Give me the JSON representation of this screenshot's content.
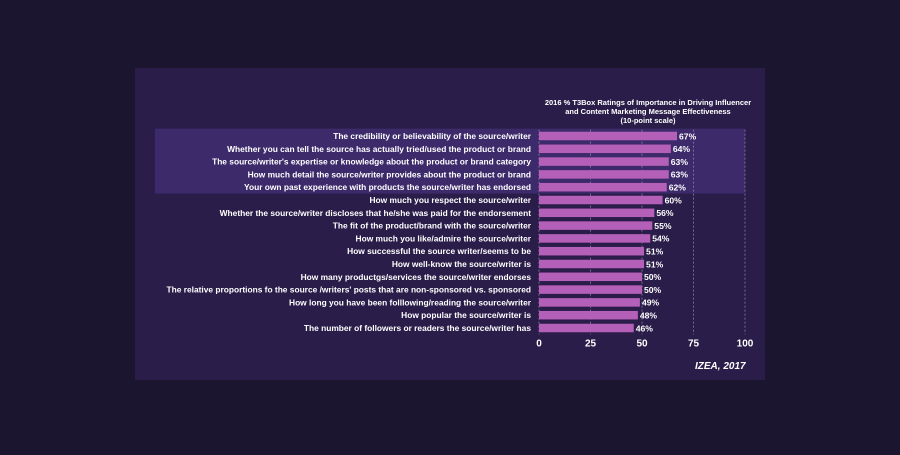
{
  "chart_data": {
    "type": "bar",
    "orientation": "horizontal",
    "title_lines": [
      "2016 %  T3Box Ratings of Importance in Driving Influencer",
      "and Content Marketing Message Effectiveness",
      "(10-point scale)"
    ],
    "categories": [
      "The credibility or believability of the source/writer",
      "Whether you can tell the source has actually tried/used the product or brand",
      "The source/writer's expertise or knowledge about the product or brand category",
      "How much detail the source/writer provides about the product or brand",
      "Your own past experience with products the source/writer has endorsed",
      "How much you respect the source/writer",
      "Whether the source/writer discloses that he/she was paid for the endorsement",
      "The fit of the product/brand with the source/writer",
      "How much you like/admire the source/writer",
      "How successful the source writer/seems to be",
      "How well-know the source/writer is",
      "How many productgs/services the source/writer endorses",
      "The relative proportions fo the source /writers' posts that are non-sponsored vs. sponsored",
      "How long you have been folllowing/reading the source/writer",
      "How popular the source/writer is",
      "The number of followers or readers the source/writer has"
    ],
    "values": [
      67,
      64,
      63,
      63,
      62,
      60,
      56,
      55,
      54,
      51,
      51,
      50,
      50,
      49,
      48,
      46
    ],
    "value_labels": [
      "67%",
      "64%",
      "63%",
      "63%",
      "62%",
      "60%",
      "56%",
      "55%",
      "54%",
      "51%",
      "51%",
      "50%",
      "50%",
      "49%",
      "48%",
      "46%"
    ],
    "highlighted_rows": 5,
    "xlim": [
      0,
      100
    ],
    "xticks": [
      0,
      25,
      50,
      75,
      100
    ],
    "xtick_labels": [
      "0",
      "25",
      "50",
      "75",
      "100"
    ],
    "grid": true,
    "source": "IZEA, 2017",
    "colors": {
      "page_bg": "#1b1530",
      "panel_bg": "#2a1d49",
      "highlight_bg": "#3c2a6b",
      "bar": "#b45fb8",
      "text": "#ffffff",
      "grid": "#8a7fa8"
    }
  }
}
